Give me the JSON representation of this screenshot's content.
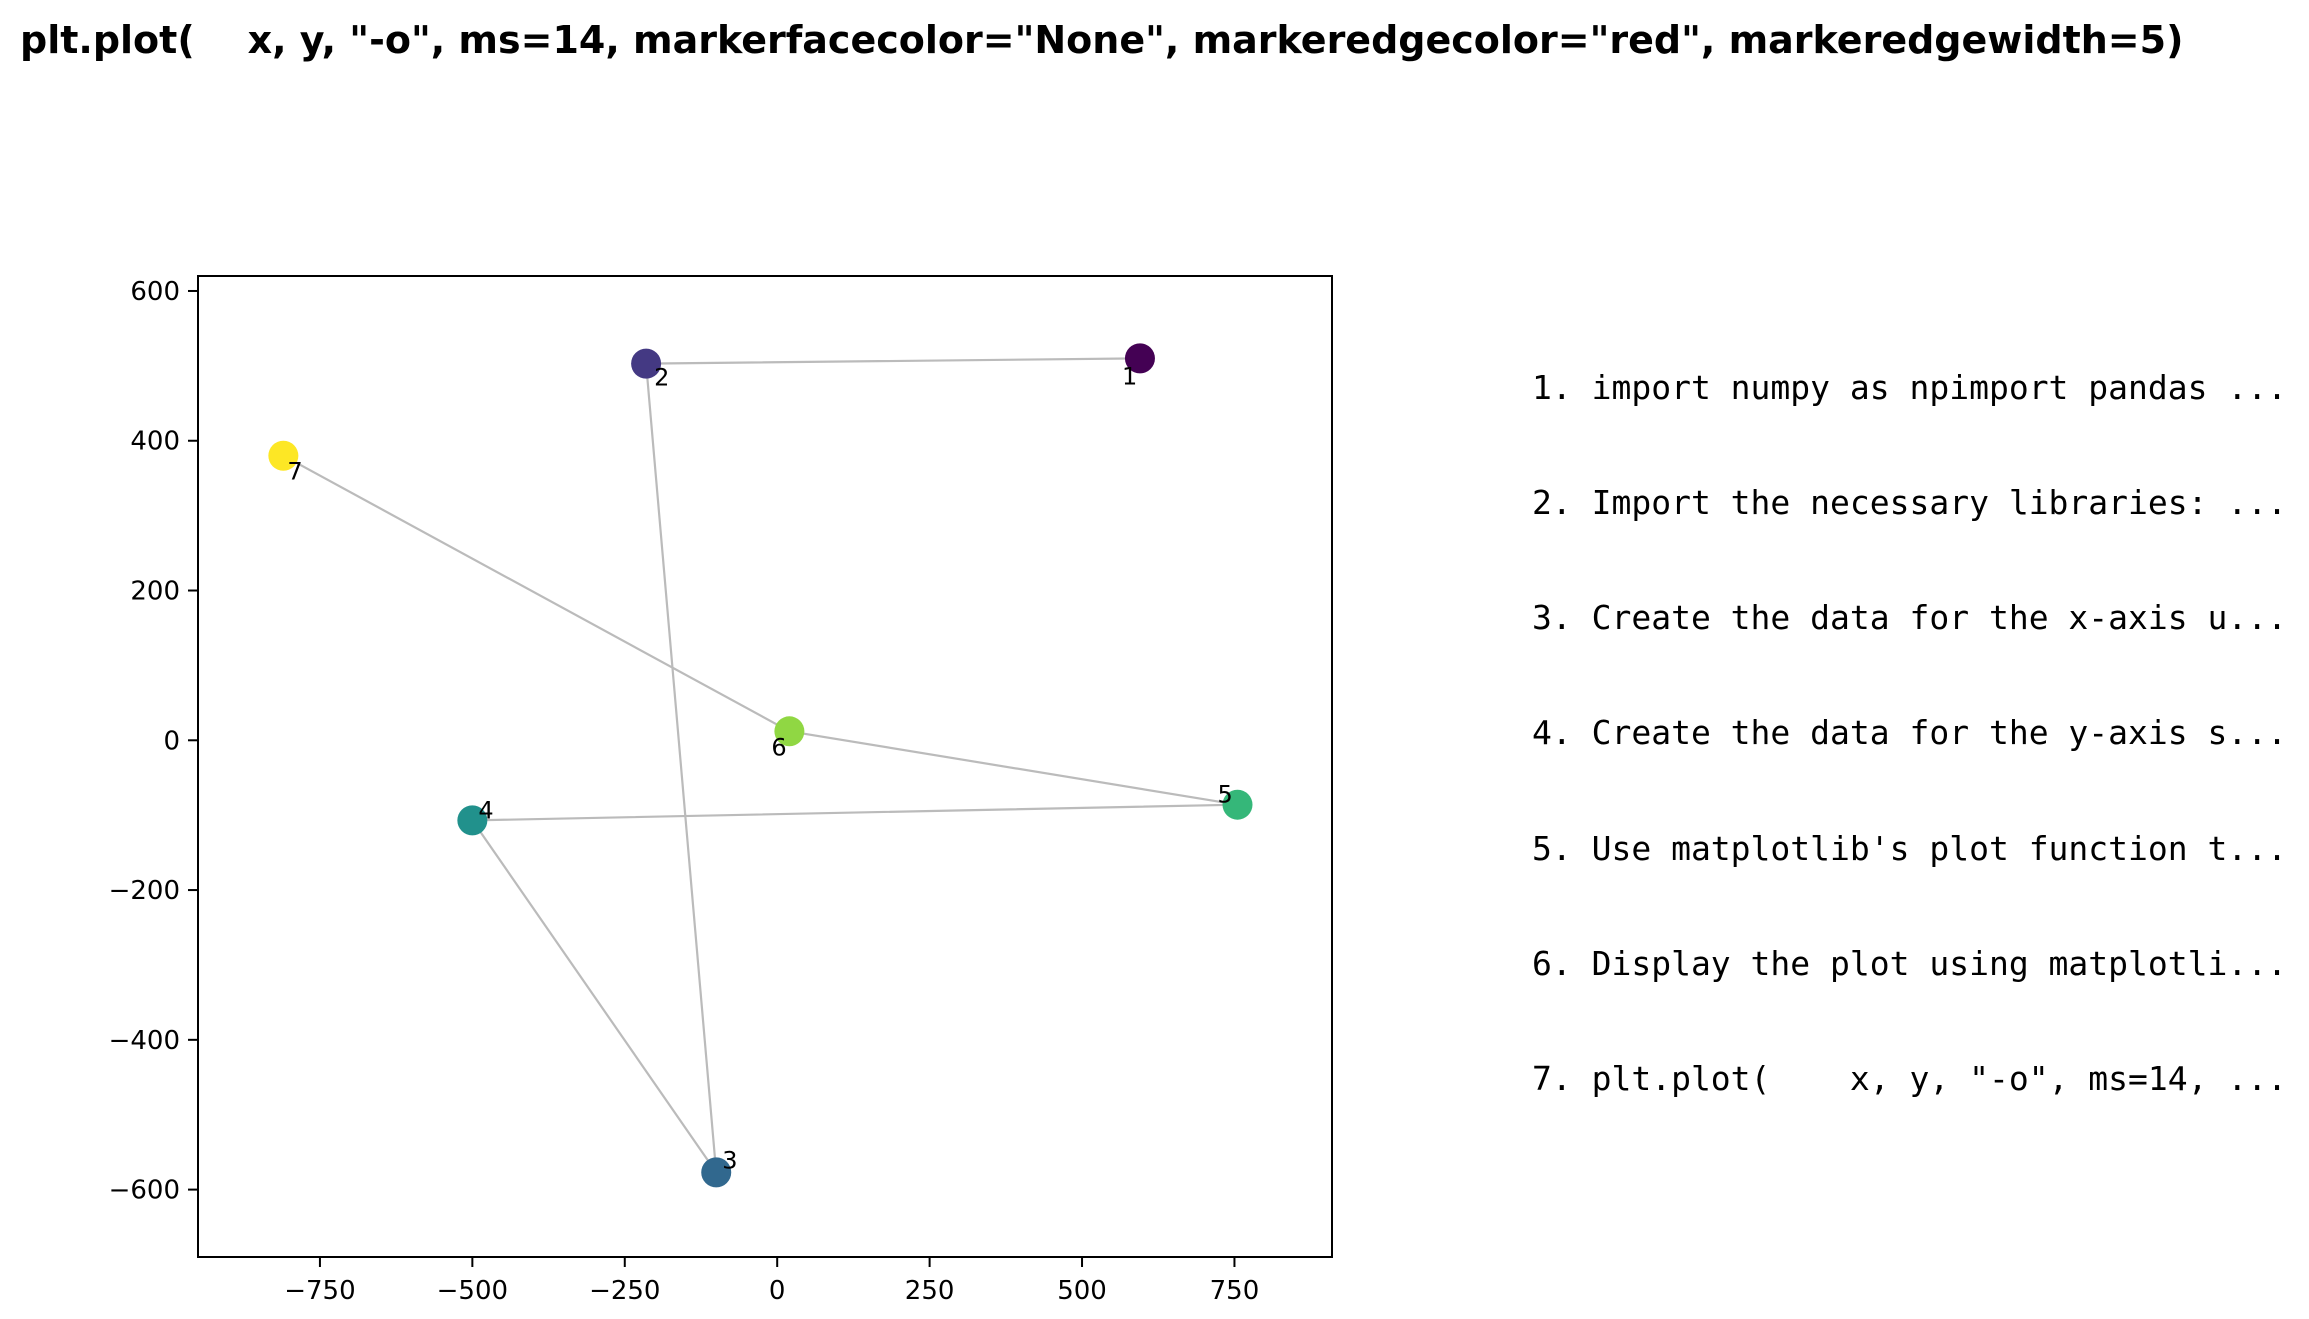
{
  "chart_data": {
    "type": "scatter",
    "title": "plt.plot(    x, y, \"-o\", ms=14, markerfacecolor=\"None\", markeredgecolor=\"red\", markeredgewidth=5)",
    "xlabel": "",
    "ylabel": "",
    "xlim": [
      -950,
      910
    ],
    "ylim": [
      -690,
      620
    ],
    "xticks": [
      -750,
      -500,
      -250,
      0,
      250,
      500,
      750
    ],
    "yticks": [
      600,
      400,
      200,
      0,
      -200,
      -400,
      -600
    ],
    "xtick_labels": [
      "−750",
      "−500",
      "−250",
      "0",
      "250",
      "500",
      "750"
    ],
    "ytick_labels": [
      "600",
      "400",
      "200",
      "0",
      "−200",
      "−400",
      "−600"
    ],
    "grid": false,
    "line_color": "#bbbbbb",
    "points": [
      {
        "label": "1",
        "x": 595,
        "y": 510,
        "color": "#440154"
      },
      {
        "label": "2",
        "x": -215,
        "y": 503,
        "color": "#443983"
      },
      {
        "label": "3",
        "x": -100,
        "y": -577,
        "color": "#31688e"
      },
      {
        "label": "4",
        "x": -500,
        "y": -107,
        "color": "#21918c"
      },
      {
        "label": "5",
        "x": 755,
        "y": -86,
        "color": "#35b779"
      },
      {
        "label": "6",
        "x": 20,
        "y": 12,
        "color": "#90d743"
      },
      {
        "label": "7",
        "x": -810,
        "y": 380,
        "color": "#fde725"
      }
    ]
  },
  "steps": [
    "1. import numpy as npimport pandas ...",
    "2. Import the necessary libraries: ...",
    "3. Create the data for the x-axis u...",
    "4. Create the data for the y-axis s...",
    "5. Use matplotlib's plot function t...",
    "6. Display the plot using matplotli...",
    "7. plt.plot(    x, y, \"-o\", ms=14, ..."
  ]
}
